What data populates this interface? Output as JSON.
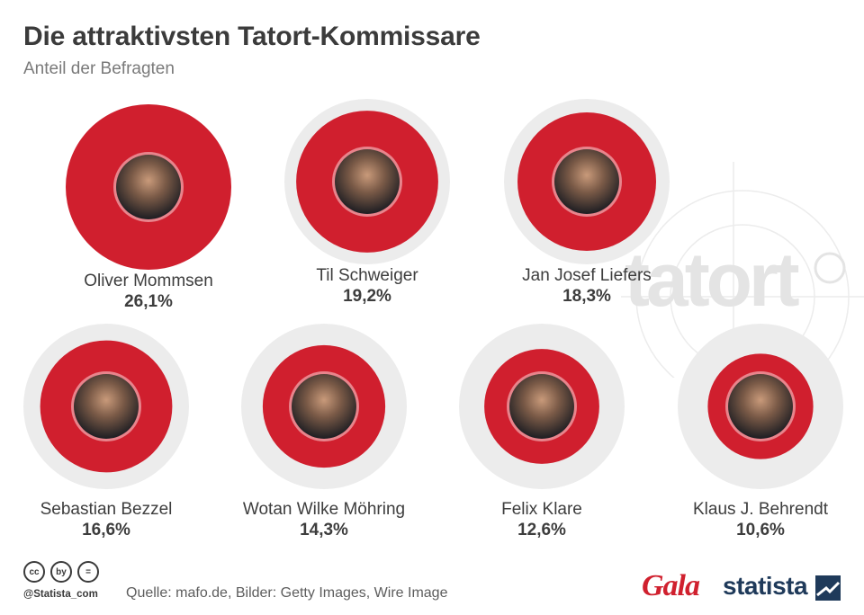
{
  "header": {
    "title": "Die attraktivsten Tatort-Kommissare",
    "subtitle": "Anteil der Befragten"
  },
  "chart_data": {
    "type": "bubble",
    "title": "Die attraktivsten Tatort-Kommissare",
    "subtitle": "Anteil der Befragten",
    "unit": "%",
    "max_value": 26.1,
    "categories": [
      "Oliver Mommsen",
      "Til Schweiger",
      "Jan Josef Liefers",
      "Sebastian Bezzel",
      "Wotan Wilke Möhring",
      "Felix Klare",
      "Klaus J. Behrendt"
    ],
    "values": [
      26.1,
      19.2,
      18.3,
      16.6,
      14.3,
      12.6,
      10.6
    ],
    "value_labels": [
      "26,1%",
      "19,2%",
      "18,3%",
      "16,6%",
      "14,3%",
      "12,6%",
      "10,6%"
    ],
    "colors": {
      "bubble": "#d01f2e",
      "background_ring": "#ececec",
      "photo_ring": "#e8848c"
    }
  },
  "watermark": {
    "text": "tatort"
  },
  "footer": {
    "cc_icons": [
      "cc",
      "by",
      "="
    ],
    "handle": "@Statista_com",
    "source": "Quelle: mafo.de, Bilder: Getty Images, Wire Image",
    "brand_gala": "Gala",
    "brand_statista": "statista"
  }
}
